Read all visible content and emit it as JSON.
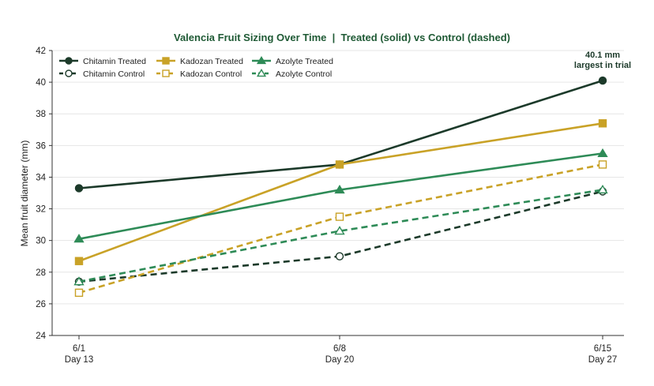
{
  "chart_data": {
    "type": "line",
    "title": "Valencia Fruit Sizing Over Time  |  Treated (solid) vs Control (dashed)",
    "ylabel": "Mean fruit diameter (mm)",
    "xlabel": "",
    "categories": [
      {
        "date": "6/1",
        "day": "Day 13"
      },
      {
        "date": "6/8",
        "day": "Day 20"
      },
      {
        "date": "6/15",
        "day": "Day 27"
      }
    ],
    "ylim": [
      24,
      42
    ],
    "yticks": [
      24,
      26,
      28,
      30,
      32,
      34,
      36,
      38,
      40,
      42
    ],
    "grid": true,
    "legend_position": "top-left",
    "series": [
      {
        "name": "Chitamin Treated",
        "values": [
          33.3,
          34.8,
          40.1
        ],
        "color": "#1c3a2a",
        "dashed": false,
        "marker": "circle",
        "filled": true
      },
      {
        "name": "Kadozan Treated",
        "values": [
          28.7,
          34.8,
          37.4
        ],
        "color": "#c9a227",
        "dashed": false,
        "marker": "square",
        "filled": true
      },
      {
        "name": "Azolyte Treated",
        "values": [
          30.1,
          33.2,
          35.5
        ],
        "color": "#2e8b57",
        "dashed": false,
        "marker": "triangle",
        "filled": true
      },
      {
        "name": "Chitamin Control",
        "values": [
          27.4,
          29.0,
          33.1
        ],
        "color": "#1c3a2a",
        "dashed": true,
        "marker": "circle",
        "filled": false
      },
      {
        "name": "Kadozan Control",
        "values": [
          26.7,
          31.5,
          34.8
        ],
        "color": "#c9a227",
        "dashed": true,
        "marker": "square",
        "filled": false
      },
      {
        "name": "Azolyte Control",
        "values": [
          27.4,
          30.6,
          33.2
        ],
        "color": "#2e8b57",
        "dashed": true,
        "marker": "triangle",
        "filled": false
      }
    ],
    "annotation": {
      "lines": [
        "40.1 mm",
        "largest in trial"
      ],
      "series": "Chitamin Treated",
      "point_index": 2
    }
  }
}
